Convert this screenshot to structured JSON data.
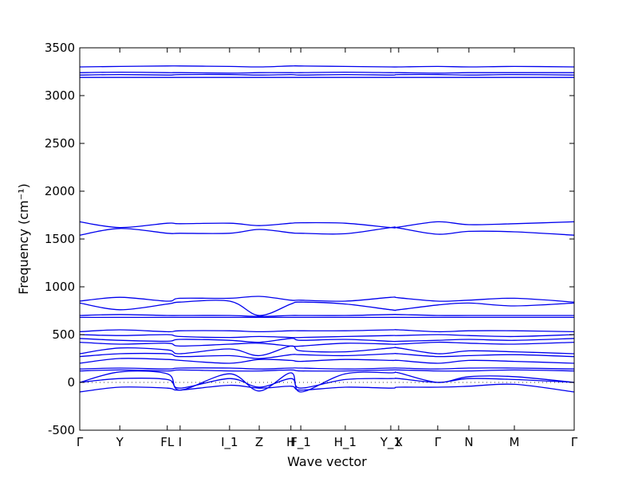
{
  "chart_data": {
    "type": "line",
    "xlabel": "Wave vector",
    "ylabel": "Frequency (cm⁻¹)",
    "ylim": [
      -500,
      3500
    ],
    "yticks": [
      -500,
      0,
      500,
      1000,
      1500,
      2000,
      2500,
      3000,
      3500
    ],
    "xlim": [
      0,
      1
    ],
    "xticks": [
      {
        "label": "Γ",
        "x": 0.0
      },
      {
        "label": "Y",
        "x": 0.081
      },
      {
        "label": "FL",
        "x": 0.177
      },
      {
        "label": "I",
        "x": 0.203
      },
      {
        "label": "I_1",
        "x": 0.303
      },
      {
        "label": "Z",
        "x": 0.363
      },
      {
        "label": "H",
        "x": 0.427
      },
      {
        "label": "F_1",
        "x": 0.447
      },
      {
        "label": "H_1",
        "x": 0.537
      },
      {
        "label": "Y_1",
        "x": 0.629
      },
      {
        "label": "X",
        "x": 0.645
      },
      {
        "label": "Γ",
        "x": 0.724
      },
      {
        "label": "N",
        "x": 0.787
      },
      {
        "label": "M",
        "x": 0.879
      },
      {
        "label": "Γ",
        "x": 1.0
      }
    ],
    "series": [
      {
        "values": [
          3300,
          3305,
          3310,
          3310,
          3305,
          3300,
          3310,
          3310,
          3305,
          3300,
          3300,
          3305,
          3300,
          3305,
          3300
        ]
      },
      {
        "values": [
          3240,
          3245,
          3240,
          3240,
          3235,
          3240,
          3240,
          3240,
          3245,
          3240,
          3240,
          3235,
          3240,
          3240,
          3240
        ]
      },
      {
        "values": [
          3215,
          3220,
          3215,
          3220,
          3220,
          3215,
          3220,
          3215,
          3220,
          3215,
          3220,
          3220,
          3215,
          3220,
          3215
        ]
      },
      {
        "values": [
          3190,
          3190,
          3190,
          3190,
          3190,
          3190,
          3190,
          3190,
          3190,
          3190,
          3190,
          3190,
          3190,
          3190,
          3190
        ]
      },
      {
        "values": [
          1680,
          1620,
          1665,
          1660,
          1665,
          1640,
          1665,
          1670,
          1665,
          1620,
          1625,
          1680,
          1650,
          1660,
          1680
        ]
      },
      {
        "values": [
          1540,
          1610,
          1560,
          1560,
          1560,
          1600,
          1565,
          1560,
          1555,
          1620,
          1615,
          1550,
          1580,
          1575,
          1540
        ]
      },
      {
        "values": [
          850,
          890,
          850,
          880,
          880,
          900,
          860,
          860,
          850,
          890,
          885,
          850,
          860,
          880,
          840
        ]
      },
      {
        "values": [
          830,
          760,
          820,
          840,
          850,
          700,
          820,
          840,
          820,
          760,
          760,
          810,
          830,
          800,
          830
        ]
      },
      {
        "values": [
          700,
          710,
          700,
          700,
          700,
          690,
          700,
          700,
          700,
          710,
          710,
          700,
          700,
          700,
          700
        ]
      },
      {
        "values": [
          680,
          680,
          680,
          680,
          680,
          680,
          680,
          680,
          680,
          680,
          680,
          680,
          680,
          680,
          680
        ]
      },
      {
        "values": [
          530,
          550,
          530,
          540,
          540,
          530,
          540,
          540,
          540,
          550,
          550,
          530,
          540,
          540,
          530
        ]
      },
      {
        "values": [
          500,
          490,
          500,
          480,
          470,
          480,
          470,
          470,
          480,
          490,
          490,
          500,
          490,
          480,
          500
        ]
      },
      {
        "values": [
          460,
          440,
          430,
          450,
          440,
          420,
          460,
          440,
          450,
          430,
          430,
          440,
          450,
          440,
          460
        ]
      },
      {
        "values": [
          420,
          400,
          410,
          380,
          400,
          410,
          380,
          380,
          410,
          400,
          400,
          420,
          410,
          400,
          420
        ]
      },
      {
        "values": [
          300,
          360,
          340,
          300,
          350,
          280,
          380,
          330,
          320,
          360,
          360,
          300,
          330,
          320,
          300
        ]
      },
      {
        "values": [
          270,
          300,
          300,
          270,
          280,
          250,
          290,
          290,
          280,
          300,
          300,
          270,
          280,
          290,
          270
        ]
      },
      {
        "values": [
          200,
          250,
          240,
          230,
          200,
          240,
          230,
          220,
          240,
          230,
          230,
          200,
          230,
          220,
          200
        ]
      },
      {
        "values": [
          140,
          150,
          140,
          150,
          150,
          140,
          150,
          150,
          140,
          150,
          150,
          140,
          150,
          150,
          140
        ]
      },
      {
        "values": [
          120,
          130,
          120,
          130,
          120,
          120,
          130,
          120,
          120,
          130,
          130,
          120,
          120,
          130,
          120
        ]
      },
      {
        "values": [
          0,
          110,
          90,
          -80,
          90,
          -90,
          100,
          -100,
          90,
          100,
          100,
          0,
          60,
          60,
          0
        ]
      },
      {
        "values": [
          0,
          40,
          30,
          -60,
          40,
          -50,
          40,
          -60,
          30,
          40,
          40,
          0,
          40,
          30,
          0
        ]
      },
      {
        "values": [
          -100,
          -50,
          -60,
          -80,
          -30,
          -60,
          -40,
          -80,
          -50,
          -60,
          -50,
          -50,
          -40,
          -20,
          -100
        ]
      }
    ]
  }
}
